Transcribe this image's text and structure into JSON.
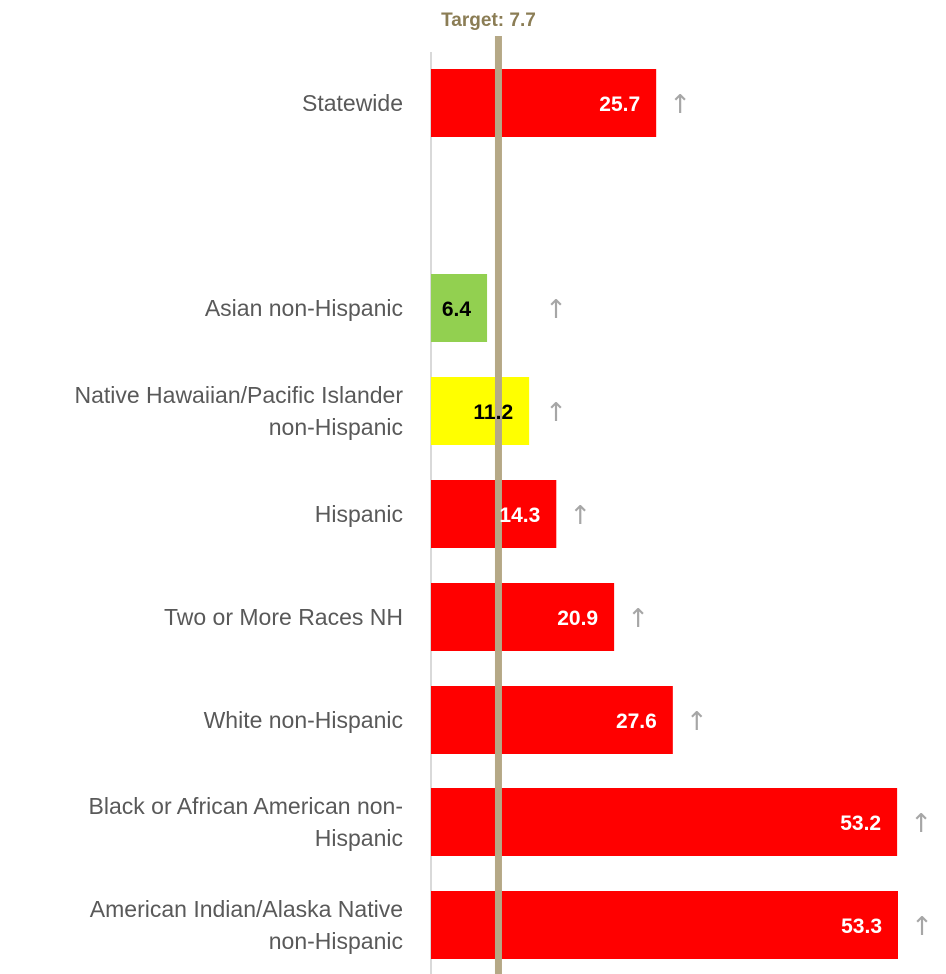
{
  "chart_data": {
    "type": "bar",
    "orientation": "horizontal",
    "categories": [
      [
        "Statewide"
      ],
      [
        "Asian non-Hispanic"
      ],
      [
        "Native Hawaiian/Pacific Islander",
        "non-Hispanic"
      ],
      [
        "Hispanic"
      ],
      [
        "Two or More Races NH"
      ],
      [
        "White non-Hispanic"
      ],
      [
        "Black or African American non-",
        "Hispanic"
      ],
      [
        "American Indian/Alaska Native",
        "non-Hispanic"
      ]
    ],
    "values": [
      25.7,
      6.4,
      11.2,
      14.3,
      20.9,
      27.6,
      53.2,
      53.3
    ],
    "value_labels": [
      "25.7",
      "6.4",
      "11.2",
      "14.3",
      "20.9",
      "27.6",
      "53.2",
      "53.3"
    ],
    "trend": [
      "↑",
      "↑",
      "↑",
      "↑",
      "↑",
      "↑",
      "↑",
      "↑"
    ],
    "bar_colors": [
      "#ff0000",
      "#92d050",
      "#ffff00",
      "#ff0000",
      "#ff0000",
      "#ff0000",
      "#ff0000",
      "#ff0000"
    ],
    "label_colors": [
      "#ffffff",
      "#000000",
      "#000000",
      "#ffffff",
      "#ffffff",
      "#ffffff",
      "#ffffff",
      "#ffffff"
    ],
    "xlim": [
      0,
      53.3
    ],
    "target": {
      "value": 7.7,
      "label": "Target: 7.7",
      "color": "#b5a886",
      "label_color": "#8b7d55"
    },
    "axis_color": "#d9d9d9",
    "grid": false,
    "legend": "none"
  }
}
